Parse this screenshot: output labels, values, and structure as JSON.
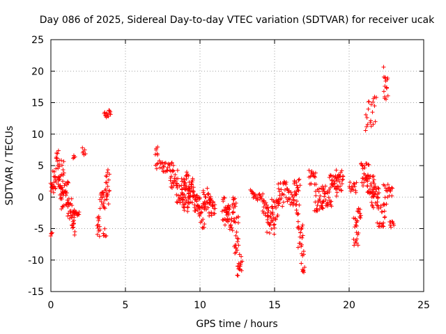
{
  "chart_data": {
    "type": "scatter",
    "title": "Day 086 of 2025, Sidereal Day-to-day VTEC variation (SDTVAR) for receiver ucak",
    "xlabel": "GPS time / hours",
    "ylabel": "SDTVAR / TECUs",
    "xlim": [
      0,
      25
    ],
    "ylim": [
      -15,
      25
    ],
    "xticks": [
      0,
      5,
      10,
      15,
      20,
      25
    ],
    "yticks": [
      -15,
      -10,
      -5,
      0,
      5,
      10,
      15,
      20,
      25
    ],
    "grid": true,
    "marker": "plus",
    "color": "#ff0000",
    "series": [
      {
        "name": "SDTVAR",
        "segments": [
          {
            "x0": 0.0,
            "x1": 0.35,
            "ymin": 0.5,
            "ymax": 4.5,
            "n": 22
          },
          {
            "x0": 0.0,
            "x1": 0.1,
            "ymin": -6.2,
            "ymax": -5.6,
            "n": 4
          },
          {
            "x0": 0.35,
            "x1": 0.55,
            "ymin": 2.0,
            "ymax": 8.0,
            "n": 14
          },
          {
            "x0": 0.5,
            "x1": 0.9,
            "ymin": 0.0,
            "ymax": 6.0,
            "n": 24
          },
          {
            "x0": 0.6,
            "x1": 1.2,
            "ymin": -2.0,
            "ymax": 2.5,
            "n": 28
          },
          {
            "x0": 1.1,
            "x1": 1.4,
            "ymin": -4.0,
            "ymax": 0.0,
            "n": 16
          },
          {
            "x0": 1.4,
            "x1": 1.6,
            "ymin": -6.2,
            "ymax": -2.0,
            "n": 16
          },
          {
            "x0": 1.5,
            "x1": 1.9,
            "ymin": -3.0,
            "ymax": -2.0,
            "n": 14
          },
          {
            "x0": 1.5,
            "x1": 1.6,
            "ymin": 6.0,
            "ymax": 7.0,
            "n": 4
          },
          {
            "x0": 2.1,
            "x1": 2.3,
            "ymin": 5.5,
            "ymax": 8.0,
            "n": 6
          },
          {
            "x0": 3.1,
            "x1": 3.3,
            "ymin": -6.5,
            "ymax": -3.0,
            "n": 12
          },
          {
            "x0": 3.3,
            "x1": 3.9,
            "ymin": -2.0,
            "ymax": 2.5,
            "n": 30
          },
          {
            "x0": 3.5,
            "x1": 3.7,
            "ymin": -7.0,
            "ymax": -5.0,
            "n": 6
          },
          {
            "x0": 3.7,
            "x1": 3.9,
            "ymin": 2.5,
            "ymax": 4.5,
            "n": 6
          },
          {
            "x0": 3.6,
            "x1": 4.0,
            "ymin": 12.5,
            "ymax": 13.8,
            "n": 14
          },
          {
            "x0": 7.0,
            "x1": 7.2,
            "ymin": 4.5,
            "ymax": 8.0,
            "n": 10
          },
          {
            "x0": 7.3,
            "x1": 7.6,
            "ymin": 4.0,
            "ymax": 6.0,
            "n": 10
          },
          {
            "x0": 7.6,
            "x1": 8.2,
            "ymin": 4.0,
            "ymax": 5.5,
            "n": 16
          },
          {
            "x0": 8.0,
            "x1": 8.5,
            "ymin": 1.0,
            "ymax": 4.5,
            "n": 20
          },
          {
            "x0": 8.4,
            "x1": 9.0,
            "ymin": -1.0,
            "ymax": 3.0,
            "n": 26
          },
          {
            "x0": 8.8,
            "x1": 9.3,
            "ymin": -2.5,
            "ymax": 4.0,
            "n": 40
          },
          {
            "x0": 9.2,
            "x1": 9.6,
            "ymin": -1.0,
            "ymax": 3.0,
            "n": 30
          },
          {
            "x0": 9.6,
            "x1": 10.0,
            "ymin": -3.0,
            "ymax": 0.5,
            "n": 26
          },
          {
            "x0": 10.0,
            "x1": 10.3,
            "ymin": -5.0,
            "ymax": -1.0,
            "n": 16
          },
          {
            "x0": 10.2,
            "x1": 10.7,
            "ymin": -2.0,
            "ymax": 1.5,
            "n": 26
          },
          {
            "x0": 10.6,
            "x1": 11.0,
            "ymin": -3.0,
            "ymax": 0.0,
            "n": 20
          },
          {
            "x0": 11.5,
            "x1": 11.9,
            "ymin": -4.5,
            "ymax": 0.0,
            "n": 22
          },
          {
            "x0": 11.8,
            "x1": 12.3,
            "ymin": -5.5,
            "ymax": -1.0,
            "n": 26
          },
          {
            "x0": 12.2,
            "x1": 12.4,
            "ymin": -1.5,
            "ymax": 1.0,
            "n": 8
          },
          {
            "x0": 12.3,
            "x1": 12.6,
            "ymin": -9.0,
            "ymax": -3.0,
            "n": 20
          },
          {
            "x0": 12.5,
            "x1": 12.8,
            "ymin": -13.0,
            "ymax": -8.5,
            "n": 16
          },
          {
            "x0": 13.4,
            "x1": 13.6,
            "ymin": 0.0,
            "ymax": 1.5,
            "n": 6
          },
          {
            "x0": 13.6,
            "x1": 14.2,
            "ymin": -0.5,
            "ymax": 0.5,
            "n": 14
          },
          {
            "x0": 14.2,
            "x1": 14.6,
            "ymin": -3.5,
            "ymax": -0.5,
            "n": 18
          },
          {
            "x0": 14.5,
            "x1": 15.0,
            "ymin": -6.2,
            "ymax": -2.0,
            "n": 22
          },
          {
            "x0": 14.8,
            "x1": 15.3,
            "ymin": -4.0,
            "ymax": 0.0,
            "n": 20
          },
          {
            "x0": 15.2,
            "x1": 15.9,
            "ymin": -1.5,
            "ymax": 2.5,
            "n": 28
          },
          {
            "x0": 15.9,
            "x1": 16.5,
            "ymin": -1.5,
            "ymax": 1.0,
            "n": 20
          },
          {
            "x0": 16.3,
            "x1": 16.7,
            "ymin": -2.5,
            "ymax": 3.0,
            "n": 18
          },
          {
            "x0": 16.5,
            "x1": 16.9,
            "ymin": -8.0,
            "ymax": -2.0,
            "n": 20
          },
          {
            "x0": 16.8,
            "x1": 17.0,
            "ymin": -12.0,
            "ymax": -7.0,
            "n": 12
          },
          {
            "x0": 17.3,
            "x1": 17.8,
            "ymin": 2.0,
            "ymax": 4.5,
            "n": 16
          },
          {
            "x0": 17.7,
            "x1": 18.3,
            "ymin": -2.5,
            "ymax": 1.5,
            "n": 28
          },
          {
            "x0": 18.2,
            "x1": 18.8,
            "ymin": -1.5,
            "ymax": 2.0,
            "n": 26
          },
          {
            "x0": 18.7,
            "x1": 19.2,
            "ymin": 0.0,
            "ymax": 3.5,
            "n": 22
          },
          {
            "x0": 19.1,
            "x1": 19.6,
            "ymin": 1.0,
            "ymax": 4.5,
            "n": 26
          },
          {
            "x0": 20.0,
            "x1": 20.5,
            "ymin": 0.5,
            "ymax": 2.5,
            "n": 14
          },
          {
            "x0": 20.3,
            "x1": 20.6,
            "ymin": -7.8,
            "ymax": -3.0,
            "n": 16
          },
          {
            "x0": 20.5,
            "x1": 20.8,
            "ymin": -4.0,
            "ymax": -1.0,
            "n": 12
          },
          {
            "x0": 20.8,
            "x1": 21.3,
            "ymin": 1.0,
            "ymax": 5.5,
            "n": 26
          },
          {
            "x0": 21.2,
            "x1": 21.7,
            "ymin": 0.5,
            "ymax": 3.5,
            "n": 24
          },
          {
            "x0": 21.5,
            "x1": 22.0,
            "ymin": -2.0,
            "ymax": 2.0,
            "n": 26
          },
          {
            "x0": 21.9,
            "x1": 22.4,
            "ymin": -4.8,
            "ymax": -1.0,
            "n": 22
          },
          {
            "x0": 21.1,
            "x1": 21.8,
            "ymin": 10.5,
            "ymax": 16.0,
            "n": 20
          },
          {
            "x0": 22.3,
            "x1": 22.6,
            "ymin": 15.0,
            "ymax": 20.8,
            "n": 16
          },
          {
            "x0": 22.3,
            "x1": 22.9,
            "ymin": -1.5,
            "ymax": 2.0,
            "n": 20
          },
          {
            "x0": 22.7,
            "x1": 23.0,
            "ymin": -5.0,
            "ymax": -3.5,
            "n": 8
          }
        ]
      }
    ]
  }
}
